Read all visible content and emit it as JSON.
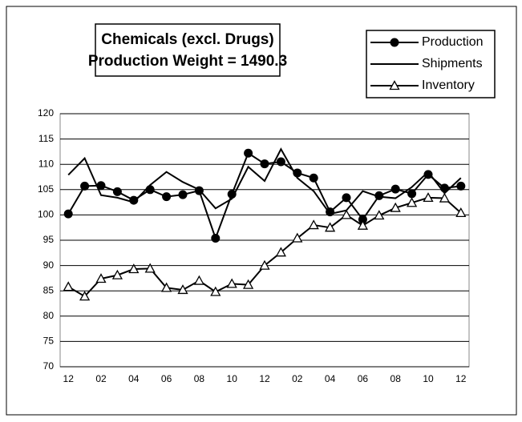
{
  "chart_data": {
    "type": "line",
    "title": [
      "Chemicals (excl. Drugs)",
      "Production Weight = 1490.3"
    ],
    "categories": [
      "12",
      null,
      "02",
      null,
      "04",
      null,
      "06",
      null,
      "08",
      null,
      "10",
      null,
      "12",
      null,
      "02",
      null,
      "04",
      null,
      "06",
      null,
      "08",
      null,
      "10",
      null,
      "12"
    ],
    "series": [
      {
        "name": "Production",
        "color": "#000000",
        "marker": "circle",
        "values": [
          100.2,
          105.7,
          105.8,
          104.6,
          102.9,
          105.0,
          103.6,
          104.0,
          104.8,
          95.4,
          104.1,
          112.2,
          110.1,
          110.5,
          108.3,
          107.3,
          100.6,
          103.4,
          99.1,
          103.8,
          105.1,
          104.2,
          108.0,
          105.3,
          105.7
        ]
      },
      {
        "name": "Shipments",
        "color": "#000000",
        "marker": "none",
        "values": [
          107.9,
          111.2,
          103.9,
          103.4,
          102.5,
          105.9,
          108.5,
          106.5,
          105.0,
          101.3,
          103.2,
          109.5,
          106.7,
          113.0,
          107.3,
          104.7,
          100.2,
          100.9,
          104.7,
          103.6,
          103.3,
          105.5,
          108.5,
          104.3,
          107.3
        ]
      },
      {
        "name": "Inventory",
        "color": "#000000",
        "marker": "triangle",
        "values": [
          85.8,
          83.9,
          87.4,
          88.1,
          89.3,
          89.4,
          85.6,
          85.2,
          87.0,
          84.8,
          86.4,
          86.2,
          90.0,
          92.6,
          95.4,
          98.0,
          97.5,
          100.0,
          97.9,
          99.9,
          101.4,
          102.4,
          103.4,
          103.3,
          100.4
        ]
      }
    ],
    "ylim": [
      70,
      120
    ],
    "yticks": [
      70,
      75,
      80,
      85,
      90,
      95,
      100,
      105,
      110,
      115,
      120
    ],
    "grid": true,
    "legend": "top-right"
  }
}
